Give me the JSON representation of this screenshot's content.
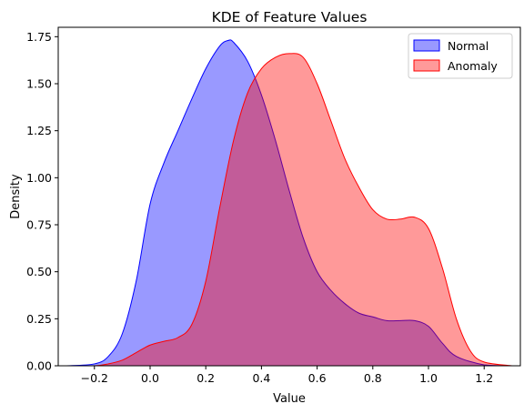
{
  "chart_data": {
    "type": "area",
    "title": "KDE of Feature Values",
    "xlabel": "Value",
    "ylabel": "Density",
    "xlim": [
      -0.33,
      1.33
    ],
    "ylim": [
      0,
      1.8
    ],
    "xticks": [
      -0.2,
      0.0,
      0.2,
      0.4,
      0.6,
      0.8,
      1.0,
      1.2
    ],
    "xtick_labels": [
      "−0.2",
      "0.0",
      "0.2",
      "0.4",
      "0.6",
      "0.8",
      "1.0",
      "1.2"
    ],
    "yticks": [
      0,
      0.25,
      0.5,
      0.75,
      1.0,
      1.25,
      1.5,
      1.75
    ],
    "ytick_labels": [
      "0.00",
      "0.25",
      "0.50",
      "0.75",
      "1.00",
      "1.25",
      "1.50",
      "1.75"
    ],
    "grid": false,
    "legend_position": "top-right",
    "series": [
      {
        "name": "Normal",
        "color": "#0000ff",
        "fill": "#9999ff",
        "x": [
          -0.3,
          -0.2,
          -0.15,
          -0.1,
          -0.05,
          0.0,
          0.05,
          0.1,
          0.15,
          0.2,
          0.25,
          0.28,
          0.3,
          0.35,
          0.4,
          0.45,
          0.5,
          0.55,
          0.6,
          0.65,
          0.7,
          0.75,
          0.8,
          0.85,
          0.9,
          0.95,
          1.0,
          1.05,
          1.1,
          1.2,
          1.3
        ],
        "y": [
          0.0,
          0.01,
          0.05,
          0.17,
          0.45,
          0.86,
          1.08,
          1.25,
          1.42,
          1.58,
          1.7,
          1.73,
          1.72,
          1.62,
          1.44,
          1.2,
          0.93,
          0.68,
          0.5,
          0.4,
          0.33,
          0.28,
          0.26,
          0.24,
          0.24,
          0.24,
          0.21,
          0.12,
          0.05,
          0.005,
          0.0
        ]
      },
      {
        "name": "Anomaly",
        "color": "#ff0000",
        "fill": "#ff9999",
        "x": [
          -0.3,
          -0.2,
          -0.15,
          -0.1,
          -0.05,
          0.0,
          0.05,
          0.1,
          0.15,
          0.2,
          0.25,
          0.3,
          0.35,
          0.4,
          0.45,
          0.5,
          0.55,
          0.6,
          0.65,
          0.7,
          0.75,
          0.8,
          0.85,
          0.9,
          0.95,
          1.0,
          1.05,
          1.1,
          1.15,
          1.2,
          1.3
        ],
        "y": [
          0.0,
          0.0,
          0.01,
          0.03,
          0.07,
          0.11,
          0.13,
          0.15,
          0.22,
          0.45,
          0.84,
          1.2,
          1.45,
          1.58,
          1.64,
          1.66,
          1.64,
          1.5,
          1.3,
          1.1,
          0.95,
          0.83,
          0.78,
          0.78,
          0.79,
          0.73,
          0.52,
          0.25,
          0.08,
          0.02,
          0.0
        ]
      }
    ]
  }
}
